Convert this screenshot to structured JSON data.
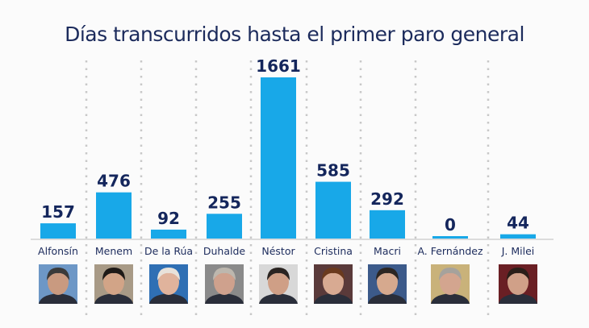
{
  "chart_data": {
    "type": "bar",
    "title": "Días transcurridos hasta el primer paro general",
    "categories": [
      "Alfonsín",
      "Menem",
      "De la Rúa",
      "Duhalde",
      "Néstor",
      "Cristina",
      "Macri",
      "A. Fernández",
      "J. Milei"
    ],
    "values": [
      157,
      476,
      92,
      255,
      1661,
      585,
      292,
      0,
      44
    ],
    "xlabel": "",
    "ylabel": "",
    "ylim": [
      0,
      1661
    ],
    "grid": false,
    "data_labels": true,
    "bar_color": "#18a8e8",
    "text_color": "#14265c",
    "category_images": [
      "portrait-alfonsin",
      "portrait-menem",
      "portrait-de-la-rua",
      "portrait-duhalde",
      "portrait-nestor",
      "portrait-cristina",
      "portrait-macri",
      "portrait-a-fernandez",
      "portrait-milei"
    ]
  }
}
